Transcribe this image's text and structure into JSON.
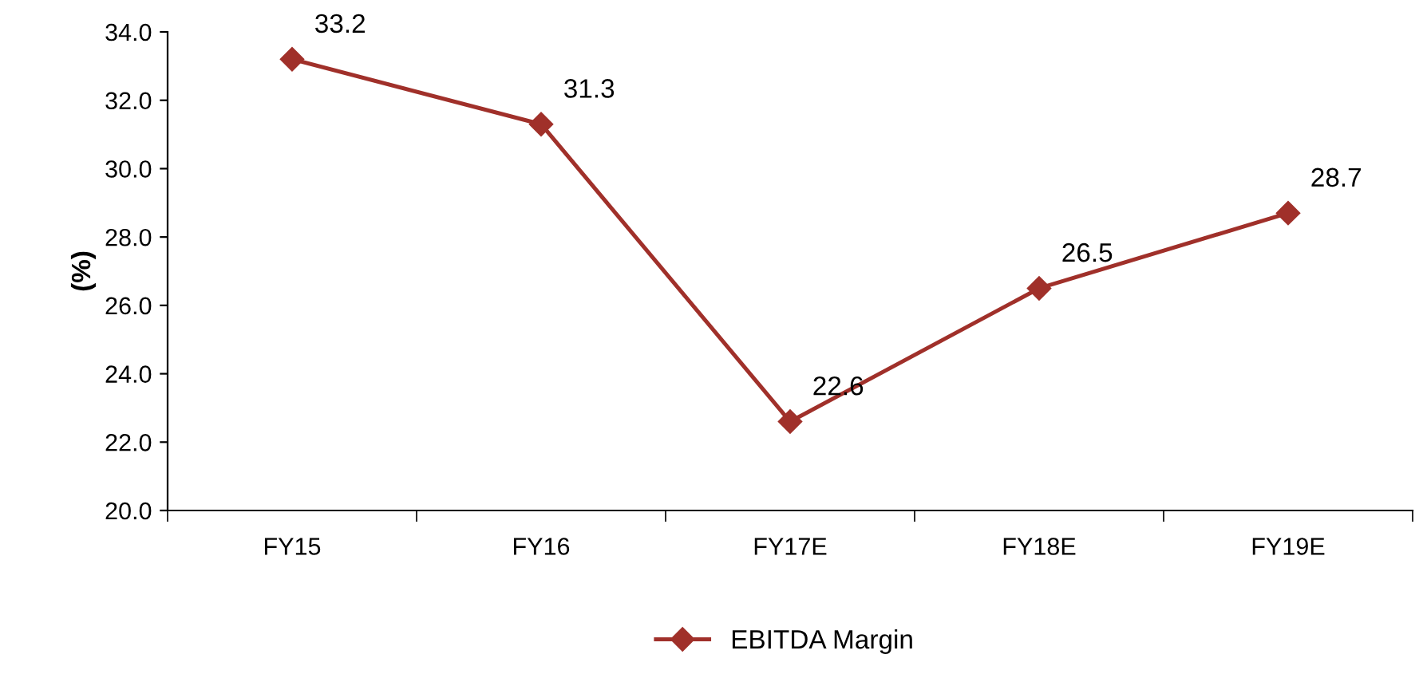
{
  "chart_data": {
    "type": "line",
    "ylabel": "(%)",
    "categories": [
      "FY15",
      "FY16",
      "FY17E",
      "FY18E",
      "FY19E"
    ],
    "series": [
      {
        "name": "EBITDA Margin",
        "color": "#a0302a",
        "values": [
          33.2,
          31.3,
          22.6,
          26.5,
          28.7
        ]
      }
    ],
    "ylim": [
      20.0,
      34.0
    ],
    "yticks": [
      {
        "value": 20,
        "label": "20.0"
      },
      {
        "value": 22,
        "label": "22.0"
      },
      {
        "value": 24,
        "label": "24.0"
      },
      {
        "value": 26,
        "label": "26.0"
      },
      {
        "value": 28,
        "label": "28.0"
      },
      {
        "value": 30,
        "label": "30.0"
      },
      {
        "value": 32,
        "label": "32.0"
      },
      {
        "value": 34,
        "label": "34.0"
      }
    ],
    "data_labels": true,
    "legend": "bottom",
    "marker": "diamond",
    "line_style": "solid",
    "grid": false
  }
}
